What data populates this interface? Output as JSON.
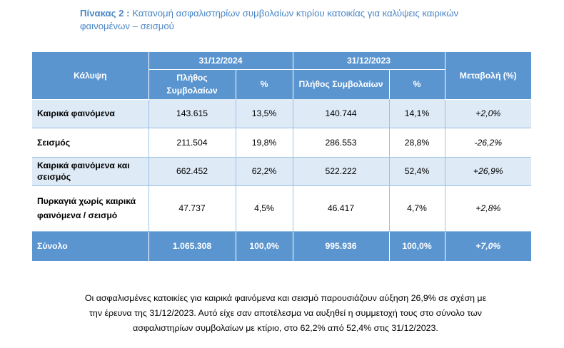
{
  "caption": {
    "label": "Πίνακας 2 :",
    "text": " Κατανομή ασφαλιστηρίων συμβολαίων κτιρίου κατοικίας για καλύψεις  καιρικών φαινομένων – σεισμού"
  },
  "table": {
    "headers": {
      "coverage": "Κάλυψη",
      "date1": "31/12/2024",
      "date2": "31/12/2023",
      "count": "Πλήθος Συμβολαίων",
      "pct": "%",
      "change": "Μεταβολή (%)"
    },
    "rows": [
      {
        "coverage": "Καιρικά φαινόμενα",
        "count_2024": "143.615",
        "pct_2024": "13,5%",
        "count_2023": "140.744",
        "pct_2023": "14,1%",
        "change": "+2,0%"
      },
      {
        "coverage": "Σεισμός",
        "count_2024": "211.504",
        "pct_2024": "19,8%",
        "count_2023": "286.553",
        "pct_2023": "28,8%",
        "change": "-26,2%"
      },
      {
        "coverage": "Καιρικά φαινόμενα και σεισμός",
        "count_2024": "662.452",
        "pct_2024": "62,2%",
        "count_2023": "522.222",
        "pct_2023": "52,4%",
        "change": "+26,9%"
      },
      {
        "coverage": "Πυρκαγιά χωρίς καιρικά φαινόμενα / σεισμό",
        "count_2024": "47.737",
        "pct_2024": "4,5%",
        "count_2023": "46.417",
        "pct_2023": "4,7%",
        "change": "+2,8%"
      }
    ],
    "total": {
      "coverage": "Σύνολο",
      "count_2024": "1.065.308",
      "pct_2024": "100,0%",
      "count_2023": "995.936",
      "pct_2023": "100,0%",
      "change": "+7,0%"
    }
  },
  "paragraph": "Οι ασφαλισμένες κατοικίες για καιρικά φαινόμενα και σεισμό παρουσιάζουν αύξηση 26,9% σε σχέση με την έρευνα της 31/12/2023. Αυτό είχε σαν αποτέλεσμα να αυξηθεί η συμμετοχή τους στο σύνολο των ασφαλιστηρίων συμβολαίων με κτίριο, στο 62,2% από 52,4% στις 31/12/2023.",
  "colors": {
    "header": "#5b95d0",
    "alt_row": "#deeaf6",
    "caption": "#4a86c5"
  }
}
